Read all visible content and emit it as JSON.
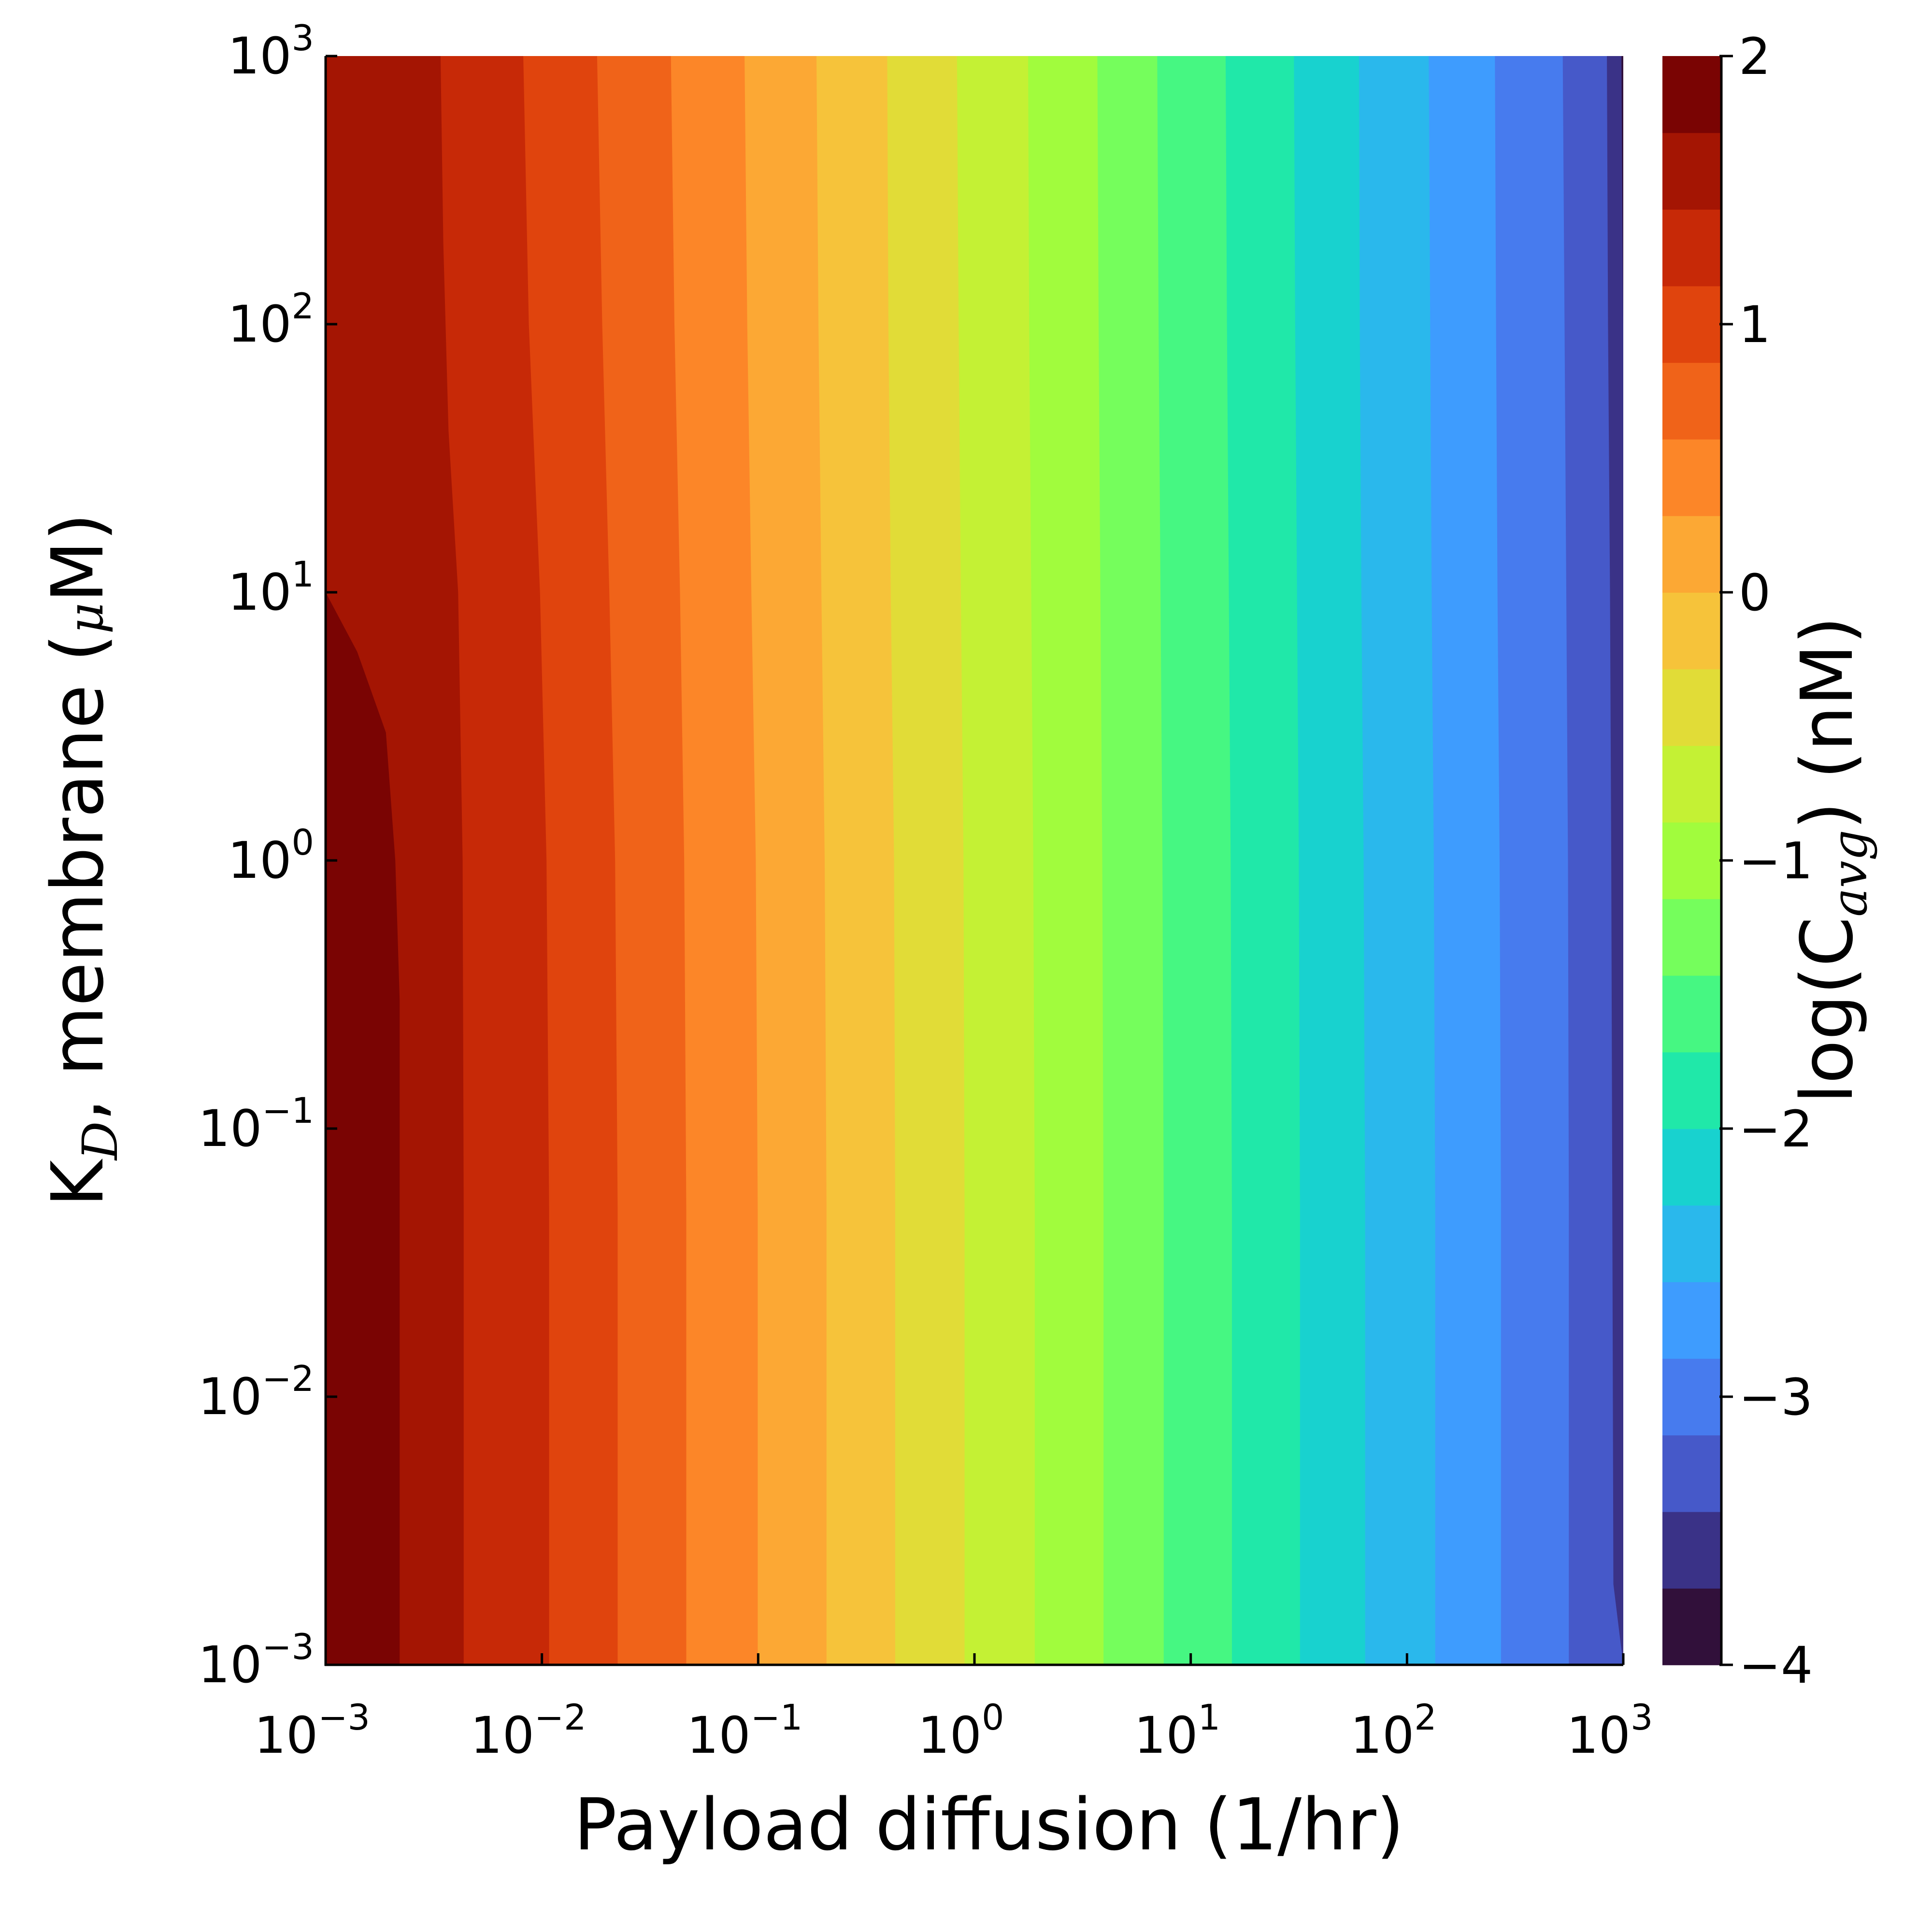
{
  "chart_data": {
    "type": "heatmap",
    "subtype": "filled-contour",
    "x_axis": {
      "label": "Payload diffusion (1/hr)",
      "scale": "log10",
      "range": [
        0.001,
        1000
      ],
      "ticks": [
        {
          "value": 0.001,
          "base": "10",
          "exp": "−3"
        },
        {
          "value": 0.01,
          "base": "10",
          "exp": "−2"
        },
        {
          "value": 0.1,
          "base": "10",
          "exp": "−1"
        },
        {
          "value": 1,
          "base": "10",
          "exp": "0"
        },
        {
          "value": 10,
          "base": "10",
          "exp": "1"
        },
        {
          "value": 100,
          "base": "10",
          "exp": "2"
        },
        {
          "value": 1000,
          "base": "10",
          "exp": "3"
        }
      ]
    },
    "y_axis": {
      "label_main": "K",
      "label_sub": "D",
      "label_rest": ", membrane (",
      "label_mu": "μ",
      "label_end": "M)",
      "scale": "log10",
      "range": [
        0.001,
        1000
      ],
      "ticks": [
        {
          "value": 0.001,
          "base": "10",
          "exp": "−3"
        },
        {
          "value": 0.01,
          "base": "10",
          "exp": "−2"
        },
        {
          "value": 0.1,
          "base": "10",
          "exp": "−1"
        },
        {
          "value": 1,
          "base": "10",
          "exp": "0"
        },
        {
          "value": 10,
          "base": "10",
          "exp": "1"
        },
        {
          "value": 100,
          "base": "10",
          "exp": "2"
        },
        {
          "value": 1000,
          "base": "10",
          "exp": "3"
        }
      ]
    },
    "colorbar": {
      "label_main": "log(C",
      "label_sub": "avg",
      "label_end": ") (nM)",
      "range": [
        -4,
        2
      ],
      "level_step": 0.285714,
      "tick_values": [
        2,
        1,
        0,
        -1,
        -2,
        -3,
        -4
      ],
      "tick_labels": [
        "2",
        "1",
        "0",
        "−1",
        "−2",
        "−3",
        "−4"
      ],
      "colors": [
        "#31103a",
        "#3a3287",
        "#4659c9",
        "#477bee",
        "#3e9cfe",
        "#2ab8ec",
        "#18d2cf",
        "#20e8a9",
        "#46f782",
        "#75fe5c",
        "#a1fc3d",
        "#c4f134",
        "#e1dc37",
        "#f6c33a",
        "#fca834",
        "#fc8628",
        "#f06319",
        "#e0440d",
        "#c72907",
        "#a41503",
        "#7a0403"
      ]
    },
    "contour_lines": [
      {
        "level": 1.714,
        "points": [
          [
            0.001,
            0.001
          ],
          [
            0.0022,
            0.001
          ],
          [
            0.0022,
            0.3
          ],
          [
            0.0021,
            1
          ],
          [
            0.0019,
            3
          ],
          [
            0.0014,
            6
          ],
          [
            0.001,
            10
          ]
        ]
      },
      {
        "level": 1.429,
        "points": [
          [
            0.00435,
            0.001
          ],
          [
            0.00435,
            0.05
          ],
          [
            0.0043,
            1
          ],
          [
            0.0041,
            10
          ],
          [
            0.0037,
            40
          ],
          [
            0.0035,
            200
          ],
          [
            0.0034,
            1000
          ]
        ]
      },
      {
        "level": 1.143,
        "points": [
          [
            0.0108,
            0.001
          ],
          [
            0.0108,
            0.05
          ],
          [
            0.0105,
            1
          ],
          [
            0.0098,
            10
          ],
          [
            0.0087,
            100
          ],
          [
            0.0082,
            1000
          ]
        ]
      },
      {
        "level": 0.857,
        "points": [
          [
            0.0224,
            0.001
          ],
          [
            0.0224,
            0.05
          ],
          [
            0.0218,
            1
          ],
          [
            0.0205,
            10
          ],
          [
            0.019,
            100
          ],
          [
            0.018,
            1000
          ]
        ]
      },
      {
        "level": 0.571,
        "points": [
          [
            0.0465,
            0.001
          ],
          [
            0.0465,
            0.05
          ],
          [
            0.0455,
            1
          ],
          [
            0.0435,
            10
          ],
          [
            0.041,
            100
          ],
          [
            0.0395,
            1000
          ]
        ]
      },
      {
        "level": 0.286,
        "points": [
          [
            0.0995,
            0.001
          ],
          [
            0.0995,
            0.05
          ],
          [
            0.0975,
            1
          ],
          [
            0.093,
            10
          ],
          [
            0.089,
            100
          ],
          [
            0.0865,
            1000
          ]
        ]
      },
      {
        "level": 0.0,
        "points": [
          [
            0.207,
            0.001
          ],
          [
            0.207,
            0.05
          ],
          [
            0.203,
            1
          ],
          [
            0.196,
            10
          ],
          [
            0.19,
            100
          ],
          [
            0.186,
            1000
          ]
        ]
      },
      {
        "level": -0.286,
        "points": [
          [
            0.43,
            0.001
          ],
          [
            0.43,
            0.05
          ],
          [
            0.425,
            1
          ],
          [
            0.41,
            10
          ],
          [
            0.4,
            100
          ],
          [
            0.395,
            1000
          ]
        ]
      },
      {
        "level": -0.571,
        "points": [
          [
            0.9,
            0.001
          ],
          [
            0.9,
            0.05
          ],
          [
            0.89,
            1
          ],
          [
            0.865,
            10
          ],
          [
            0.845,
            100
          ],
          [
            0.83,
            1000
          ]
        ]
      },
      {
        "level": -0.857,
        "points": [
          [
            1.9,
            0.001
          ],
          [
            1.9,
            0.05
          ],
          [
            1.87,
            1
          ],
          [
            1.83,
            10
          ],
          [
            1.79,
            100
          ],
          [
            1.77,
            1000
          ]
        ]
      },
      {
        "level": -1.143,
        "points": [
          [
            3.95,
            0.001
          ],
          [
            3.95,
            0.05
          ],
          [
            3.9,
            1
          ],
          [
            3.82,
            10
          ],
          [
            3.75,
            100
          ],
          [
            3.7,
            1000
          ]
        ]
      },
      {
        "level": -1.429,
        "points": [
          [
            7.5,
            0.001
          ],
          [
            7.5,
            0.05
          ],
          [
            7.4,
            1
          ],
          [
            7.25,
            10
          ],
          [
            7.1,
            100
          ],
          [
            7.0,
            1000
          ]
        ]
      },
      {
        "level": -1.714,
        "points": [
          [
            15.5,
            0.001
          ],
          [
            15.5,
            0.05
          ],
          [
            15.3,
            1
          ],
          [
            15.0,
            10
          ],
          [
            14.7,
            100
          ],
          [
            14.5,
            1000
          ]
        ]
      },
      {
        "level": -2.0,
        "points": [
          [
            32,
            0.001
          ],
          [
            32,
            0.05
          ],
          [
            31.6,
            1
          ],
          [
            31.0,
            10
          ],
          [
            30.4,
            100
          ],
          [
            30,
            1000
          ]
        ]
      },
      {
        "level": -2.286,
        "points": [
          [
            64,
            0.001
          ],
          [
            64,
            0.05
          ],
          [
            63,
            1
          ],
          [
            61.5,
            10
          ],
          [
            60.5,
            100
          ],
          [
            60,
            1000
          ]
        ]
      },
      {
        "level": -2.571,
        "points": [
          [
            135,
            0.001
          ],
          [
            135,
            0.05
          ],
          [
            133,
            1
          ],
          [
            130,
            10
          ],
          [
            128,
            100
          ],
          [
            126,
            1000
          ]
        ]
      },
      {
        "level": -2.857,
        "points": [
          [
            272,
            0.001
          ],
          [
            272,
            0.05
          ],
          [
            268,
            1
          ],
          [
            262,
            10
          ],
          [
            258,
            100
          ],
          [
            255,
            1000
          ]
        ]
      },
      {
        "level": -3.143,
        "points": [
          [
            560,
            0.001
          ],
          [
            560,
            0.05
          ],
          [
            555,
            1
          ],
          [
            545,
            10
          ],
          [
            535,
            100
          ],
          [
            525,
            1000
          ]
        ]
      },
      {
        "level": -3.429,
        "points": [
          [
            1000,
            0.001
          ],
          [
            900,
            0.002
          ],
          [
            890,
            0.05
          ],
          [
            880,
            1
          ],
          [
            868,
            10
          ],
          [
            850,
            100
          ],
          [
            840,
            1000
          ]
        ]
      },
      {
        "level": -3.714,
        "points": [
          [
            1000,
            100
          ],
          [
            985,
            500
          ],
          [
            980,
            1000
          ]
        ]
      }
    ]
  }
}
